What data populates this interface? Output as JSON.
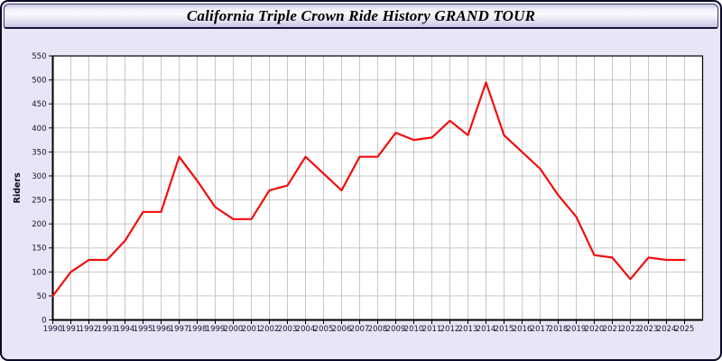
{
  "window": {
    "title_bar": {
      "title": "California Triple Crown Ride History GRAND TOUR"
    }
  },
  "colors": {
    "panel_bg": "#e8e6f6",
    "outer_border": "#0a0a28",
    "plot_bg": "#ffffff",
    "grid": "#c8c8c8",
    "axis": "#000000",
    "tick_label": "#121232",
    "axis_title": "#0a0a1e",
    "line": "#f20d0d"
  },
  "chart_data": {
    "type": "line",
    "title": "California Triple Crown Ride History GRAND TOUR",
    "xlabel": "",
    "ylabel": "Riders",
    "x": [
      1990,
      1991,
      1992,
      1993,
      1994,
      1995,
      1996,
      1997,
      1998,
      1999,
      2000,
      2001,
      2002,
      2003,
      2004,
      2005,
      2006,
      2007,
      2008,
      2009,
      2010,
      2011,
      2012,
      2013,
      2014,
      2015,
      2016,
      2017,
      2018,
      2019,
      2020,
      2021,
      2022,
      2023,
      2024,
      2025
    ],
    "series": [
      {
        "name": "Riders",
        "color": "#f20d0d",
        "values": [
          50,
          100,
          125,
          125,
          165,
          225,
          225,
          340,
          290,
          235,
          210,
          210,
          270,
          280,
          340,
          305,
          270,
          340,
          340,
          390,
          375,
          380,
          415,
          385,
          495,
          385,
          350,
          315,
          260,
          215,
          135,
          130,
          85,
          130,
          125,
          125
        ]
      }
    ],
    "ylim": [
      0,
      550
    ],
    "ytick_step": 50,
    "grid": true,
    "legend": "none"
  }
}
